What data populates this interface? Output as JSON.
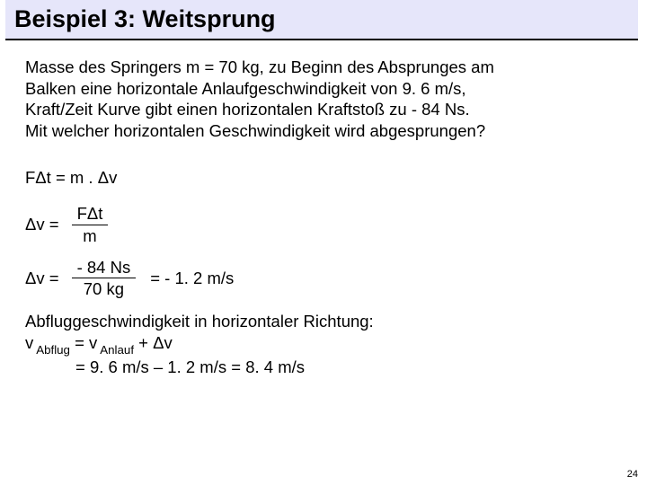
{
  "title": "Beispiel 3: Weitsprung",
  "problem": {
    "l1": "Masse des Springers m = 70 kg, zu Beginn des Absprunges am",
    "l2": "Balken eine horizontale Anlaufgeschwindigkeit von 9. 6 m/s,",
    "l3": "Kraft/Zeit Kurve gibt einen horizontalen Kraftstoß zu - 84 Ns.",
    "l4": "Mit welcher horizontalen Geschwindigkeit wird abgesprungen?"
  },
  "eq1": "FΔt = m . Δv",
  "frac1": {
    "label": "Δv =",
    "num": "FΔt",
    "den": "m"
  },
  "frac2": {
    "label": "Δv =",
    "num": "-   84 Ns",
    "den": "70 kg",
    "after": "=  -  1. 2 m/s"
  },
  "conclusion": {
    "l1": "Abfluggeschwindigkeit in horizontaler Richtung:",
    "l2a": "v",
    "l2sub1": " Abflug",
    "l2b": "  = v",
    "l2sub2": " Anlauf",
    "l2c": " + Δv",
    "l3": "= 9. 6 m/s – 1. 2 m/s = 8. 4 m/s"
  },
  "page": "24",
  "colors": {
    "title_bg": "#e6e6fa",
    "text": "#000000",
    "page_bg": "#ffffff"
  }
}
